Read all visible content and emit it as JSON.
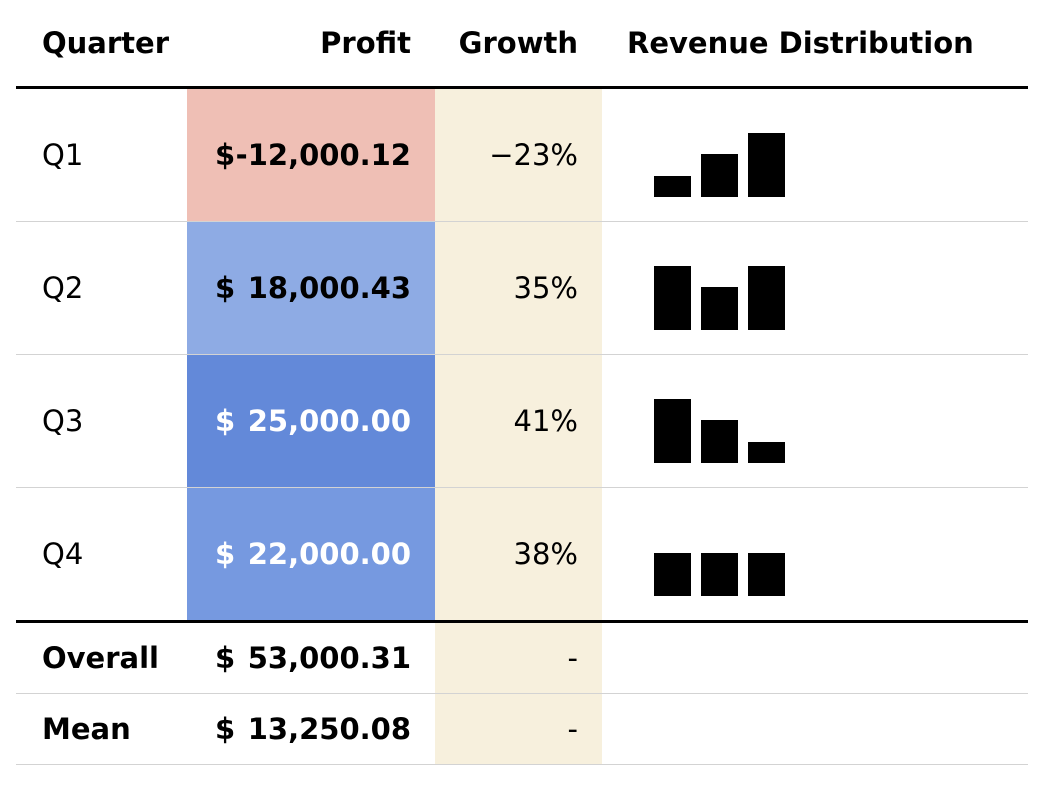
{
  "headers": {
    "quarter": "Quarter",
    "profit": "Profit",
    "growth": "Growth",
    "revenue": "Revenue Distribution"
  },
  "rows": [
    {
      "quarter": "Q1",
      "currency": "$",
      "profit": "-12,000.12",
      "growth": "−23%",
      "profit_bg": "#efbfb5",
      "profit_color": "#000000",
      "revenue": [
        1,
        2,
        3
      ]
    },
    {
      "quarter": "Q2",
      "currency": "$",
      "profit": "18,000.43",
      "growth": "35%",
      "profit_bg": "#8eabe4",
      "profit_color": "#000000",
      "revenue": [
        3,
        2,
        3
      ]
    },
    {
      "quarter": "Q3",
      "currency": "$",
      "profit": "25,000.00",
      "growth": "41%",
      "profit_bg": "#6389d9",
      "profit_color": "#ffffff",
      "revenue": [
        3,
        2,
        1
      ]
    },
    {
      "quarter": "Q4",
      "currency": "$",
      "profit": "22,000.00",
      "growth": "38%",
      "profit_bg": "#7699e0",
      "profit_color": "#ffffff",
      "revenue": [
        2,
        2,
        2
      ]
    }
  ],
  "summary": [
    {
      "label": "Overall",
      "currency": "$",
      "profit": "53,000.31",
      "growth": "-"
    },
    {
      "label": "Mean",
      "currency": "$",
      "profit": "13,250.08",
      "growth": "-"
    }
  ],
  "growth_bg": "#f7f0dd"
}
